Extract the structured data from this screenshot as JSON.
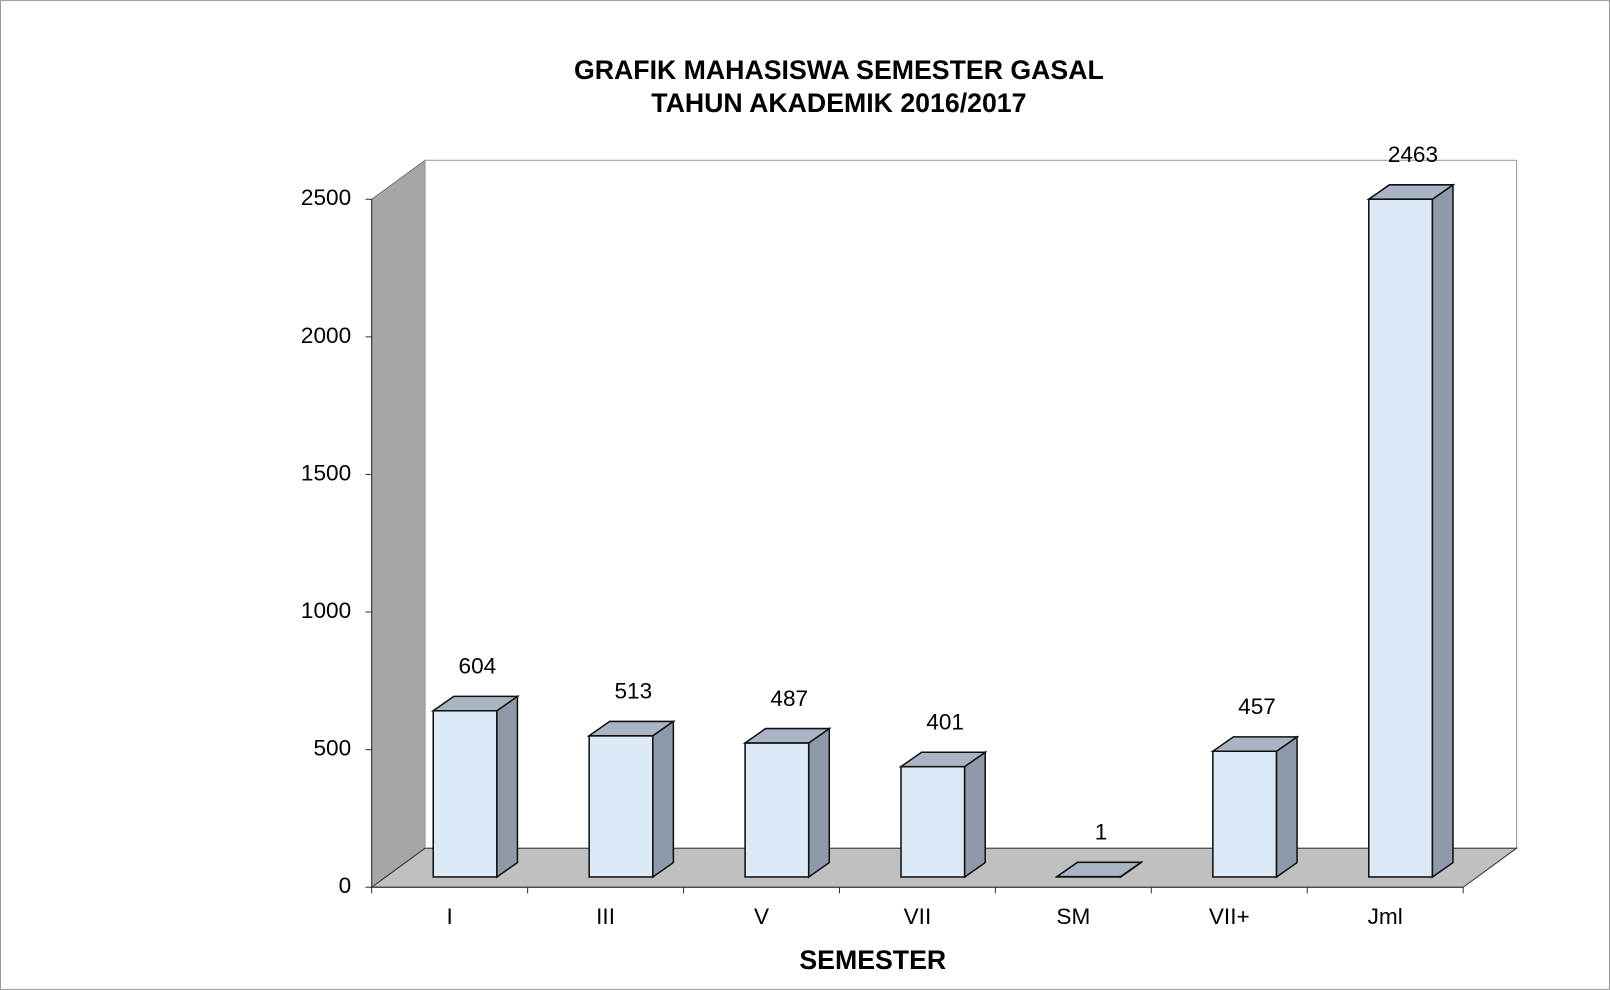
{
  "chart_data": {
    "type": "bar3d",
    "title": "GRAFIK MAHASISWA SEMESTER GASAL",
    "subtitle": "TAHUN  AKADEMIK 2016/2017",
    "x_label": "SEMESTER",
    "categories": [
      "I",
      "III",
      "V",
      "VII",
      "SM",
      "VII+",
      "Jml"
    ],
    "values": [
      604,
      513,
      487,
      401,
      1,
      457,
      2463
    ],
    "color": "#dce9f7",
    "ylim": [
      0,
      2500
    ],
    "yticks": [
      0,
      500,
      1000,
      1500,
      2000,
      2500
    ]
  }
}
